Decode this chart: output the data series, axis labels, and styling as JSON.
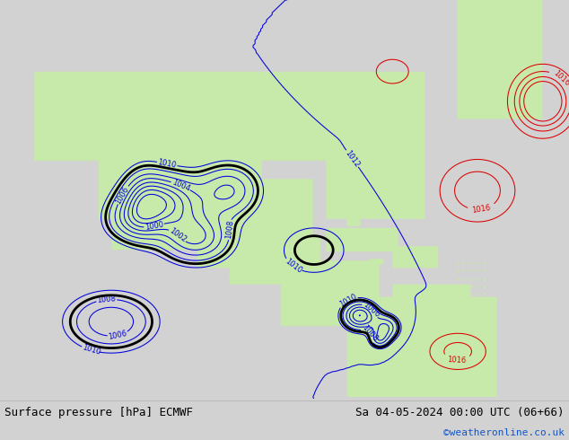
{
  "title_left": "Surface pressure [hPa] ECMWF",
  "title_right": "Sa 04-05-2024 00:00 UTC (06+66)",
  "copyright": "©weatheronline.co.uk",
  "land_color": "#c8eaaa",
  "sea_color": "#d2d2d2",
  "figure_bg": "#d2d2d2",
  "bottom_bar_color": "#ececec",
  "title_fontsize": 9,
  "copyright_color": "#1155cc",
  "blue_color": "#0000dd",
  "red_color": "#dd0000",
  "black_color": "#000000",
  "gray_color": "#888888",
  "map_extent": [
    -130,
    -50,
    0,
    60
  ]
}
